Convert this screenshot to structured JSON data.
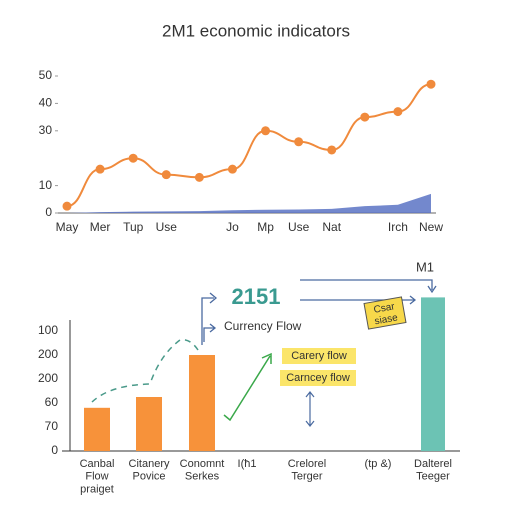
{
  "title": "2M1 economic indicators",
  "chart_data": [
    {
      "type": "line",
      "categories": [
        "May",
        "Mer",
        "Tup",
        "Use",
        null,
        "Jo",
        "Mp",
        "Use",
        "Nat",
        null,
        "Irch",
        "New"
      ],
      "series": [
        {
          "color": "#f08a3c",
          "values": [
            2.5,
            16,
            20,
            14,
            13,
            16,
            30,
            26,
            23,
            35,
            37,
            47
          ]
        },
        {
          "color": "#5b73c4",
          "fill": true,
          "values": [
            0,
            0.3,
            0.5,
            0.6,
            0.7,
            1,
            1.2,
            1.3,
            1.5,
            2.5,
            3,
            7
          ]
        }
      ],
      "ylim": [
        0,
        50
      ],
      "yticks": [
        0,
        10,
        30,
        40,
        50
      ]
    },
    {
      "type": "bar",
      "categories": [
        "Canbal\nFlow\npraiget",
        "Citanery\nPovice",
        "Conomnt\nSerkes",
        "I(ħ1",
        "Crelorel\nTerger",
        "(tp &)",
        "Dalterel\nTeeger"
      ],
      "values": [
        1.8,
        2.25,
        4,
        null,
        null,
        null,
        6.4
      ],
      "colors": [
        "#f7923a",
        "#f7923a",
        "#f7923a",
        null,
        null,
        null,
        "#6cc3b4"
      ],
      "ylim": [
        0,
        6.5
      ],
      "y_labels": [
        "0",
        "70",
        "60",
        "200",
        "200",
        "100"
      ],
      "annotations": [
        "2151",
        "M1",
        "Currency Flow",
        "Carery flow",
        "Carncey flow",
        "Csar\nsiase"
      ]
    }
  ]
}
